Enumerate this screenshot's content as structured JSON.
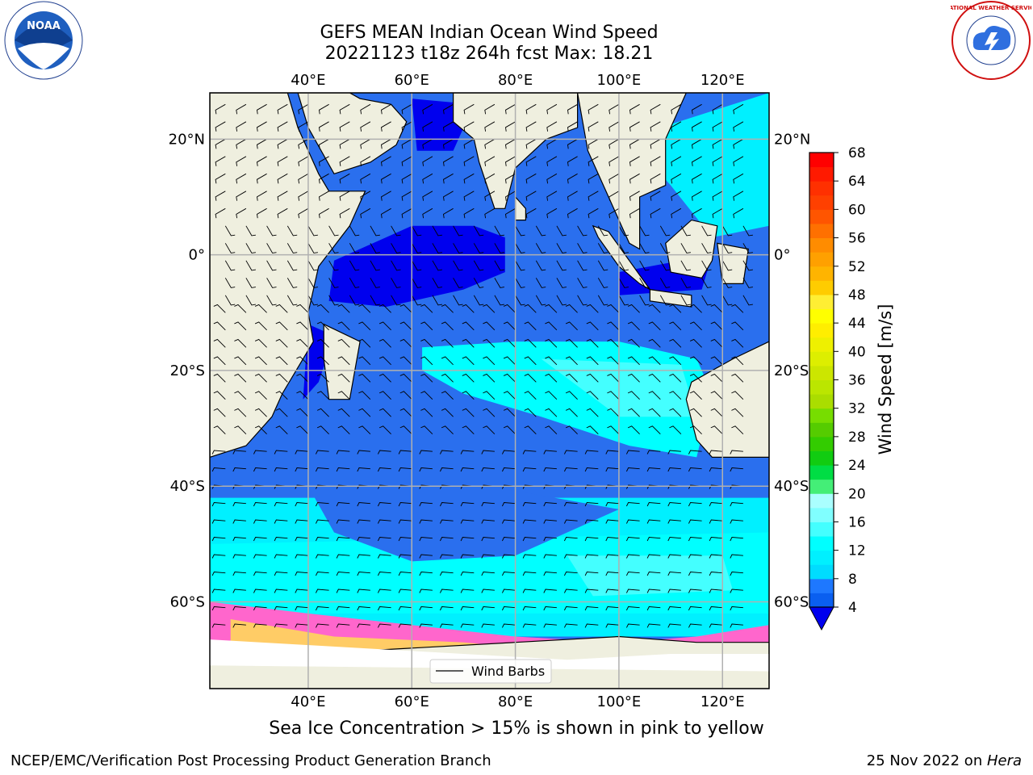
{
  "header": {
    "title_line1": "GEFS MEAN Indian Ocean Wind Speed",
    "title_line2": "20221123 t18z 264h fcst   Max: 18.21"
  },
  "logos": {
    "left": {
      "icon": "noaa-logo",
      "text": "NOAA"
    },
    "right": {
      "icon": "nws-logo",
      "text": "NATIONAL WEATHER SERVICE"
    }
  },
  "map": {
    "projection": "equirectangular",
    "lon_range": [
      21,
      129
    ],
    "lat_range": [
      -75,
      28
    ],
    "gridlines": true,
    "lon_ticks": [
      "40°E",
      "60°E",
      "80°E",
      "100°E",
      "120°E"
    ],
    "lon_tick_values": [
      40,
      60,
      80,
      100,
      120
    ],
    "lat_ticks": [
      "20°N",
      "0°",
      "20°S",
      "40°S",
      "60°S"
    ],
    "lat_tick_values": [
      20,
      0,
      -20,
      -40,
      -60
    ],
    "legend": {
      "label": "Wind Barbs",
      "placement": "bottom-center"
    },
    "colors": {
      "land": "#efefdf",
      "ice_free_ocean_low": "#3f6fe6",
      "sea_ice_pink": "#ff66cc",
      "sea_ice_yellow": "#ffcc66"
    }
  },
  "colorbar": {
    "label": "Wind Speed [m/s]",
    "ticks": [
      "4",
      "8",
      "12",
      "16",
      "20",
      "24",
      "28",
      "32",
      "36",
      "40",
      "44",
      "48",
      "52",
      "56",
      "60",
      "64",
      "68"
    ],
    "bins": [
      {
        "from": 4,
        "to": 6,
        "color": "#0a5ff0"
      },
      {
        "from": 6,
        "to": 8,
        "color": "#1e78ff"
      },
      {
        "from": 8,
        "to": 10,
        "color": "#00dcff"
      },
      {
        "from": 10,
        "to": 12,
        "color": "#00f0ff"
      },
      {
        "from": 12,
        "to": 14,
        "color": "#00ffff"
      },
      {
        "from": 14,
        "to": 16,
        "color": "#44ffff"
      },
      {
        "from": 16,
        "to": 18,
        "color": "#80ffff"
      },
      {
        "from": 18,
        "to": 20,
        "color": "#aaffff"
      },
      {
        "from": 20,
        "to": 22,
        "color": "#44ee77"
      },
      {
        "from": 22,
        "to": 24,
        "color": "#00dd44"
      },
      {
        "from": 24,
        "to": 26,
        "color": "#11cc11"
      },
      {
        "from": 26,
        "to": 28,
        "color": "#33cc00"
      },
      {
        "from": 28,
        "to": 30,
        "color": "#55cc00"
      },
      {
        "from": 30,
        "to": 32,
        "color": "#77dd00"
      },
      {
        "from": 32,
        "to": 34,
        "color": "#aadd00"
      },
      {
        "from": 34,
        "to": 36,
        "color": "#bbe600"
      },
      {
        "from": 36,
        "to": 38,
        "color": "#cce600"
      },
      {
        "from": 38,
        "to": 40,
        "color": "#ddee00"
      },
      {
        "from": 40,
        "to": 42,
        "color": "#eef000"
      },
      {
        "from": 42,
        "to": 44,
        "color": "#ffee00"
      },
      {
        "from": 44,
        "to": 46,
        "color": "#ffff00"
      },
      {
        "from": 46,
        "to": 48,
        "color": "#ffee33"
      },
      {
        "from": 48,
        "to": 50,
        "color": "#ffcc00"
      },
      {
        "from": 50,
        "to": 52,
        "color": "#ffb400"
      },
      {
        "from": 52,
        "to": 54,
        "color": "#ffa000"
      },
      {
        "from": 54,
        "to": 56,
        "color": "#ff8c00"
      },
      {
        "from": 56,
        "to": 58,
        "color": "#ff7000"
      },
      {
        "from": 58,
        "to": 60,
        "color": "#ff5500"
      },
      {
        "from": 60,
        "to": 62,
        "color": "#ff4000"
      },
      {
        "from": 62,
        "to": 64,
        "color": "#ff3000"
      },
      {
        "from": 64,
        "to": 66,
        "color": "#ff1a00"
      },
      {
        "from": 66,
        "to": 68,
        "color": "#ff0000"
      }
    ],
    "extend_color": "#0000ee"
  },
  "caption": "Sea Ice Concentration > 15% is shown in pink to yellow",
  "footer": {
    "left": "NCEP/EMC/Verification Post Processing Product Generation Branch",
    "right_prefix": "25 Nov 2022 on ",
    "right_machine": "Hera"
  }
}
